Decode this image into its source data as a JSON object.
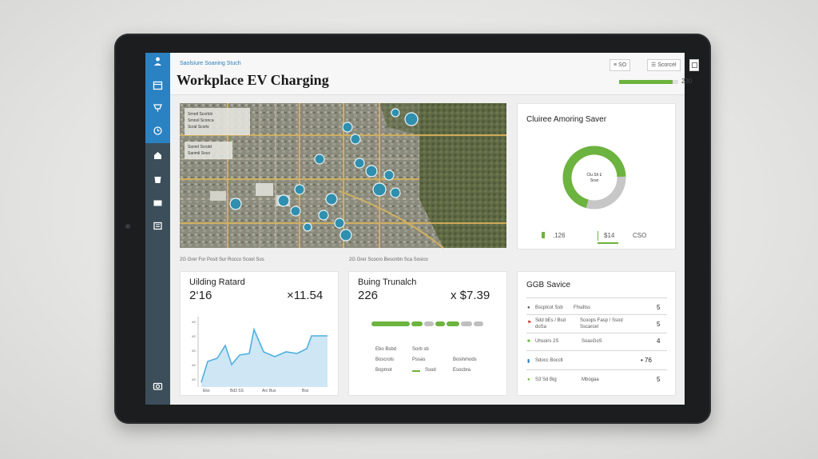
{
  "header": {
    "breadcrumb": "Saolsiure Soaning Stuch",
    "title": "Workplace EV Charging",
    "buttons": [
      "≡ SO",
      "☰ Scorcel"
    ],
    "progress_label": "230",
    "progress_fraction": 0.9
  },
  "sidebar": {
    "icons": [
      "user-icon",
      "calendar-icon",
      "charger-icon",
      "clock-icon",
      "building-icon",
      "cup-icon",
      "card-icon",
      "list-icon",
      "camera-icon"
    ]
  },
  "map": {
    "caption_left": "2G Grer For Posit Sur Rocco Scool Sos",
    "caption_right": "2G Grer Scocro Bescnbn Sca Sosico",
    "overlay_lines": [
      "Srnntl Scorlcb",
      "Srnnol Sconca",
      "Scral Scorls",
      "Ssnnrl Scrotd",
      "Sanmli Soco"
    ]
  },
  "donut_card": {
    "title": "Cluiree Amoring Saver",
    "center_line1": "Clu Sh £",
    "center_line2": "Sruo",
    "values": [
      ".126",
      "$14",
      "CSO"
    ],
    "colors": {
      "green": "#6db33f",
      "grey": "#c7c7c7"
    }
  },
  "building_card": {
    "title": "Uilding Ratard",
    "value_left": "2‘16",
    "value_right": "×11.54",
    "x_ticks": [
      "Eko",
      "Bd3 SS",
      "Arc Bus",
      "Bss"
    ],
    "y_ticks": [
      "4S",
      "4S",
      "4S",
      "4S",
      "4S"
    ]
  },
  "truck_card": {
    "title": "Buing Trunalch",
    "value_left": "226",
    "value_right": "x $7.39",
    "stats": [
      {
        "a": "Ebo Bsbd",
        "b": "Sorb sb",
        "c": ""
      },
      {
        "a": "Boscrols",
        "b": "Pssas",
        "c": "Boslnmods"
      },
      {
        "a": "Bopmot",
        "b": "Ssod",
        "c": "Esocbra"
      }
    ]
  },
  "service_card": {
    "title": "GGB Savice",
    "rows": [
      {
        "icon": "plug-icon",
        "text": "Bscplcot Ssb",
        "text2": "Fhsdtss",
        "value": "5"
      },
      {
        "icon": "flag-icon",
        "text": "Sdd bEs / Bsd doSa",
        "text2": "Scoops Fasp / Ssod Sscarcel",
        "value": "5"
      },
      {
        "icon": "grid-icon",
        "text": "Uhsoirs 2S",
        "text2": "SoasGoS",
        "value": "4"
      },
      {
        "icon": "battery-icon",
        "text": "Sdocc Bocclt",
        "text2": "",
        "value": "• 76"
      },
      {
        "icon": "leaf-icon",
        "text": "S3 Sd Big",
        "text2": "Mbogaa",
        "value": "5"
      }
    ]
  }
}
